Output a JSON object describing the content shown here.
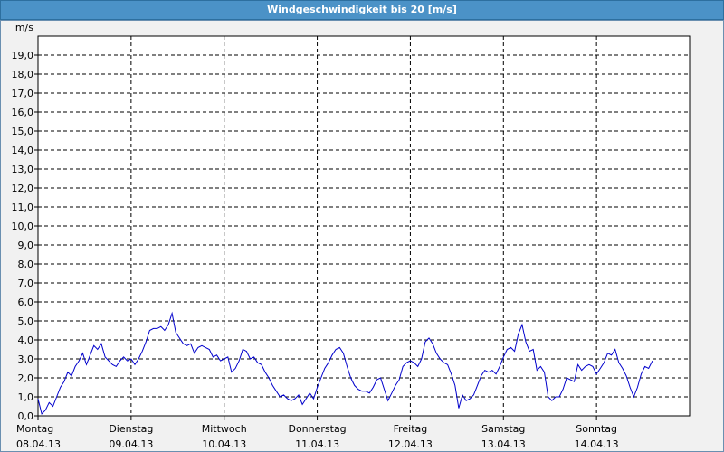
{
  "window": {
    "title": "Windgeschwindigkeit bis 20 [m/s]"
  },
  "chart_data": {
    "type": "line",
    "title": "Windgeschwindigkeit bis 20 [m/s]",
    "ylabel": "m/s",
    "xlabel": "",
    "ylim": [
      0,
      20
    ],
    "xlim": [
      0,
      7
    ],
    "grid": true,
    "y_ticks": [
      "0,0",
      "1,0",
      "2,0",
      "3,0",
      "4,0",
      "5,0",
      "6,0",
      "7,0",
      "8,0",
      "9,0",
      "10,0",
      "11,0",
      "12,0",
      "13,0",
      "14,0",
      "15,0",
      "16,0",
      "17,0",
      "18,0",
      "19,0"
    ],
    "x_ticks": [
      {
        "day": "Montag",
        "date": "08.04.13"
      },
      {
        "day": "Dienstag",
        "date": "09.04.13"
      },
      {
        "day": "Mittwoch",
        "date": "10.04.13"
      },
      {
        "day": "Donnerstag",
        "date": "11.04.13"
      },
      {
        "day": "Freitag",
        "date": "12.04.13"
      },
      {
        "day": "Samstag",
        "date": "13.04.13"
      },
      {
        "day": "Sonntag",
        "date": "14.04.13"
      }
    ],
    "colors": {
      "line": "#0000cc",
      "axis": "#000000",
      "grid": "#000000",
      "plot_bg": "#ffffff"
    },
    "series": [
      {
        "values": [
          [
            0.0,
            0.9
          ],
          [
            0.04,
            0.1
          ],
          [
            0.08,
            0.3
          ],
          [
            0.12,
            0.7
          ],
          [
            0.16,
            0.5
          ],
          [
            0.2,
            1.0
          ],
          [
            0.24,
            1.5
          ],
          [
            0.28,
            1.8
          ],
          [
            0.32,
            2.3
          ],
          [
            0.36,
            2.1
          ],
          [
            0.4,
            2.6
          ],
          [
            0.44,
            2.9
          ],
          [
            0.48,
            3.3
          ],
          [
            0.52,
            2.7
          ],
          [
            0.56,
            3.2
          ],
          [
            0.6,
            3.7
          ],
          [
            0.64,
            3.5
          ],
          [
            0.68,
            3.8
          ],
          [
            0.72,
            3.1
          ],
          [
            0.76,
            2.9
          ],
          [
            0.8,
            2.7
          ],
          [
            0.84,
            2.6
          ],
          [
            0.88,
            2.9
          ],
          [
            0.92,
            3.1
          ],
          [
            0.96,
            2.9
          ],
          [
            1.0,
            3.0
          ],
          [
            1.04,
            2.7
          ],
          [
            1.08,
            3.0
          ],
          [
            1.12,
            3.4
          ],
          [
            1.16,
            3.9
          ],
          [
            1.2,
            4.5
          ],
          [
            1.24,
            4.6
          ],
          [
            1.28,
            4.6
          ],
          [
            1.32,
            4.7
          ],
          [
            1.36,
            4.5
          ],
          [
            1.4,
            4.8
          ],
          [
            1.44,
            5.4
          ],
          [
            1.48,
            4.4
          ],
          [
            1.52,
            4.1
          ],
          [
            1.56,
            3.8
          ],
          [
            1.6,
            3.7
          ],
          [
            1.64,
            3.8
          ],
          [
            1.68,
            3.3
          ],
          [
            1.72,
            3.6
          ],
          [
            1.76,
            3.7
          ],
          [
            1.8,
            3.6
          ],
          [
            1.84,
            3.5
          ],
          [
            1.88,
            3.1
          ],
          [
            1.92,
            3.2
          ],
          [
            1.96,
            2.9
          ],
          [
            2.0,
            3.0
          ],
          [
            2.04,
            3.1
          ],
          [
            2.08,
            2.3
          ],
          [
            2.12,
            2.5
          ],
          [
            2.16,
            2.9
          ],
          [
            2.2,
            3.5
          ],
          [
            2.24,
            3.4
          ],
          [
            2.28,
            3.0
          ],
          [
            2.32,
            3.1
          ],
          [
            2.36,
            2.8
          ],
          [
            2.4,
            2.7
          ],
          [
            2.44,
            2.3
          ],
          [
            2.48,
            2.0
          ],
          [
            2.52,
            1.6
          ],
          [
            2.56,
            1.3
          ],
          [
            2.6,
            1.0
          ],
          [
            2.64,
            1.1
          ],
          [
            2.68,
            0.9
          ],
          [
            2.72,
            0.8
          ],
          [
            2.76,
            0.9
          ],
          [
            2.8,
            1.1
          ],
          [
            2.84,
            0.6
          ],
          [
            2.88,
            0.9
          ],
          [
            2.92,
            1.2
          ],
          [
            2.96,
            0.9
          ],
          [
            3.0,
            1.5
          ],
          [
            3.04,
            2.0
          ],
          [
            3.08,
            2.5
          ],
          [
            3.12,
            2.8
          ],
          [
            3.16,
            3.2
          ],
          [
            3.2,
            3.5
          ],
          [
            3.24,
            3.6
          ],
          [
            3.28,
            3.3
          ],
          [
            3.32,
            2.6
          ],
          [
            3.36,
            2.0
          ],
          [
            3.4,
            1.6
          ],
          [
            3.44,
            1.4
          ],
          [
            3.48,
            1.3
          ],
          [
            3.52,
            1.3
          ],
          [
            3.56,
            1.2
          ],
          [
            3.6,
            1.5
          ],
          [
            3.64,
            1.9
          ],
          [
            3.68,
            2.0
          ],
          [
            3.72,
            1.4
          ],
          [
            3.76,
            0.8
          ],
          [
            3.8,
            1.2
          ],
          [
            3.84,
            1.6
          ],
          [
            3.88,
            1.9
          ],
          [
            3.92,
            2.6
          ],
          [
            3.96,
            2.8
          ],
          [
            4.0,
            2.9
          ],
          [
            4.04,
            2.8
          ],
          [
            4.08,
            2.6
          ],
          [
            4.12,
            3.0
          ],
          [
            4.16,
            3.9
          ],
          [
            4.2,
            4.1
          ],
          [
            4.24,
            3.8
          ],
          [
            4.28,
            3.3
          ],
          [
            4.32,
            3.0
          ],
          [
            4.36,
            2.8
          ],
          [
            4.4,
            2.7
          ],
          [
            4.44,
            2.2
          ],
          [
            4.48,
            1.6
          ],
          [
            4.52,
            0.4
          ],
          [
            4.56,
            1.1
          ],
          [
            4.6,
            0.8
          ],
          [
            4.64,
            0.9
          ],
          [
            4.68,
            1.1
          ],
          [
            4.72,
            1.6
          ],
          [
            4.76,
            2.1
          ],
          [
            4.8,
            2.4
          ],
          [
            4.84,
            2.3
          ],
          [
            4.88,
            2.4
          ],
          [
            4.92,
            2.2
          ],
          [
            4.96,
            2.6
          ],
          [
            5.0,
            3.1
          ],
          [
            5.04,
            3.5
          ],
          [
            5.08,
            3.6
          ],
          [
            5.12,
            3.4
          ],
          [
            5.16,
            4.3
          ],
          [
            5.2,
            4.8
          ],
          [
            5.24,
            3.9
          ],
          [
            5.28,
            3.4
          ],
          [
            5.32,
            3.5
          ],
          [
            5.36,
            2.4
          ],
          [
            5.4,
            2.6
          ],
          [
            5.44,
            2.3
          ],
          [
            5.48,
            1.0
          ],
          [
            5.52,
            0.8
          ],
          [
            5.56,
            1.0
          ],
          [
            5.6,
            1.0
          ],
          [
            5.64,
            1.4
          ],
          [
            5.68,
            2.0
          ],
          [
            5.72,
            1.9
          ],
          [
            5.76,
            1.8
          ],
          [
            5.8,
            2.7
          ],
          [
            5.84,
            2.4
          ],
          [
            5.88,
            2.6
          ],
          [
            5.92,
            2.7
          ],
          [
            5.96,
            2.6
          ],
          [
            6.0,
            2.2
          ],
          [
            6.04,
            2.5
          ],
          [
            6.08,
            2.8
          ],
          [
            6.12,
            3.3
          ],
          [
            6.16,
            3.2
          ],
          [
            6.2,
            3.5
          ],
          [
            6.24,
            2.8
          ],
          [
            6.28,
            2.5
          ],
          [
            6.32,
            2.1
          ],
          [
            6.36,
            1.5
          ],
          [
            6.4,
            1.0
          ],
          [
            6.44,
            1.5
          ],
          [
            6.48,
            2.2
          ],
          [
            6.52,
            2.6
          ],
          [
            6.56,
            2.5
          ],
          [
            6.6,
            2.9
          ]
        ]
      }
    ]
  }
}
